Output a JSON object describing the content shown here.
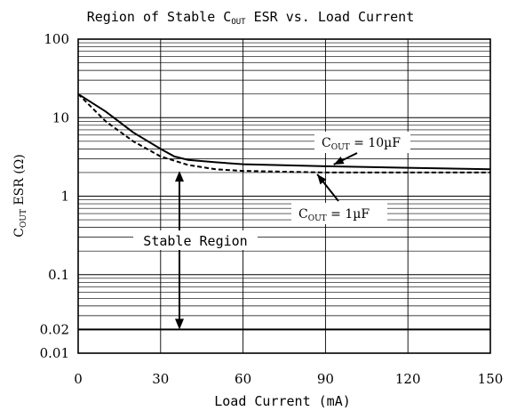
{
  "chart_data": {
    "type": "line",
    "title_main": "Region of Stable C",
    "title_sub": "OUT",
    "title_rest": " ESR vs. Load Current",
    "xlabel": "Load Current (mA)",
    "ylabel_main": "C",
    "ylabel_sub": "OUT",
    "ylabel_rest": " ESR (Ω)",
    "xlim": [
      0,
      150
    ],
    "ylim": [
      0.01,
      100
    ],
    "y_scale": "log",
    "x_ticks": [
      0,
      30,
      60,
      90,
      120,
      150
    ],
    "x_tick_labels": [
      "0",
      "30",
      "60",
      "90",
      "120",
      "150"
    ],
    "y_ticks": [
      0.01,
      0.02,
      0.1,
      1,
      10,
      100
    ],
    "y_tick_labels": [
      "0.01",
      "0.02",
      "0.1",
      "1",
      "10",
      "100"
    ],
    "grid": true,
    "series": [
      {
        "name_main": "C",
        "name_sub": "OUT",
        "name_rest": " = 10µF",
        "style": "solid",
        "x": [
          0,
          10,
          20,
          30,
          35,
          40,
          50,
          60,
          90,
          120,
          150
        ],
        "y": [
          20,
          12,
          6.5,
          4,
          3.2,
          2.9,
          2.7,
          2.55,
          2.4,
          2.3,
          2.2
        ]
      },
      {
        "name_main": "C",
        "name_sub": "OUT",
        "name_rest": " = 1µF",
        "style": "dashed",
        "x": [
          0,
          10,
          20,
          30,
          40,
          50,
          60,
          90,
          120,
          150
        ],
        "y": [
          20,
          9,
          5,
          3.2,
          2.5,
          2.2,
          2.1,
          2.0,
          2.0,
          2.0
        ]
      }
    ],
    "lower_bound": 0.02,
    "annotations": {
      "stable_region": "Stable Region"
    }
  }
}
